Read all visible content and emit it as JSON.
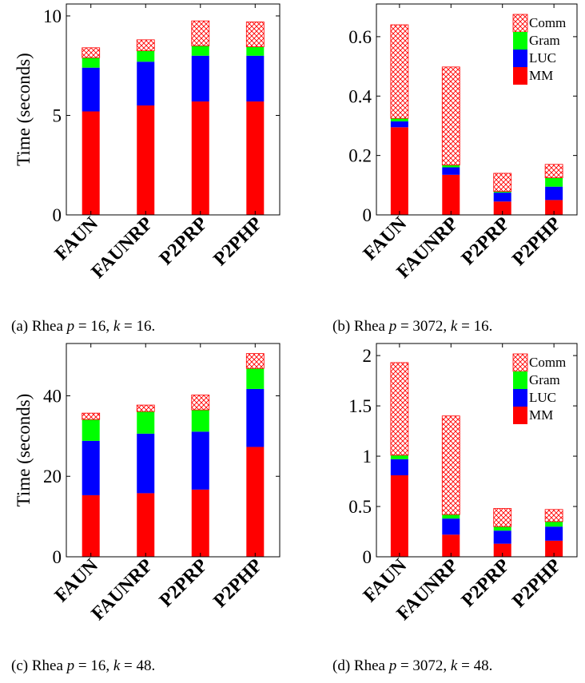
{
  "colors": {
    "MM": "#ff0000",
    "LUC": "#0000ff",
    "Gram": "#00ff00",
    "Comm": "#ff0000"
  },
  "charts": [
    {
      "caption": {
        "prefix": "(a) Rhea ",
        "p": "16",
        "k": "16"
      },
      "chart_data": {
        "type": "bar",
        "stacked": true,
        "categories": [
          "FAUN",
          "FAUNRP",
          "P2PRP",
          "P2PHP"
        ],
        "ylabel": "Time (seconds)",
        "ylim": [
          0,
          10.6
        ],
        "yticks": [
          0,
          5,
          10
        ],
        "ytick_labels": [
          "0",
          "5",
          "10"
        ],
        "legend": null,
        "series": [
          {
            "key": "MM",
            "values": [
              5.2,
              5.5,
              5.7,
              5.7
            ]
          },
          {
            "key": "LUC",
            "values": [
              2.2,
              2.2,
              2.3,
              2.3
            ]
          },
          {
            "key": "Gram",
            "values": [
              0.5,
              0.55,
              0.5,
              0.45
            ]
          },
          {
            "key": "Comm",
            "values": [
              0.5,
              0.55,
              1.25,
              1.25
            ]
          }
        ]
      }
    },
    {
      "caption": {
        "prefix": "(b) Rhea ",
        "p": "3072",
        "k": "16"
      },
      "chart_data": {
        "type": "bar",
        "stacked": true,
        "categories": [
          "FAUN",
          "FAUNRP",
          "P2PRP",
          "P2PHP"
        ],
        "ylabel": "",
        "ylim": [
          0,
          0.71
        ],
        "yticks": [
          0,
          0.2,
          0.4,
          0.6
        ],
        "ytick_labels": [
          "0",
          "0.2",
          "0.4",
          "0.6"
        ],
        "legend": {
          "position": "top-right",
          "entries": [
            "Comm",
            "Gram",
            "LUC",
            "MM"
          ]
        },
        "series": [
          {
            "key": "MM",
            "values": [
              0.295,
              0.135,
              0.045,
              0.05
            ]
          },
          {
            "key": "LUC",
            "values": [
              0.02,
              0.025,
              0.03,
              0.045
            ]
          },
          {
            "key": "Gram",
            "values": [
              0.01,
              0.008,
              0.004,
              0.03
            ]
          },
          {
            "key": "Comm",
            "values": [
              0.315,
              0.33,
              0.061,
              0.045
            ]
          }
        ]
      }
    },
    {
      "caption": {
        "prefix": "(c) Rhea ",
        "p": "16",
        "k": "48"
      },
      "chart_data": {
        "type": "bar",
        "stacked": true,
        "categories": [
          "FAUN",
          "FAUNRP",
          "P2PRP",
          "P2PHP"
        ],
        "ylabel": "Time (seconds)",
        "ylim": [
          0,
          53
        ],
        "yticks": [
          0,
          20,
          40
        ],
        "ytick_labels": [
          "0",
          "20",
          "40"
        ],
        "legend": null,
        "series": [
          {
            "key": "MM",
            "values": [
              15.3,
              15.8,
              16.7,
              27.3
            ]
          },
          {
            "key": "LUC",
            "values": [
              13.5,
              14.8,
              14.4,
              14.4
            ]
          },
          {
            "key": "Gram",
            "values": [
              5.3,
              5.5,
              5.4,
              5.1
            ]
          },
          {
            "key": "Comm",
            "values": [
              1.6,
              1.6,
              3.7,
              3.7
            ]
          }
        ]
      }
    },
    {
      "caption": {
        "prefix": "(d) Rhea ",
        "p": "3072",
        "k": "48"
      },
      "chart_data": {
        "type": "bar",
        "stacked": true,
        "categories": [
          "FAUN",
          "FAUNRP",
          "P2PRP",
          "P2PHP"
        ],
        "ylabel": "",
        "ylim": [
          0,
          2.12
        ],
        "yticks": [
          0,
          0.5,
          1,
          1.5,
          2
        ],
        "ytick_labels": [
          "0",
          "0.5",
          "1",
          "1.5",
          "2"
        ],
        "legend": {
          "position": "top-right",
          "entries": [
            "Comm",
            "Gram",
            "LUC",
            "MM"
          ]
        },
        "series": [
          {
            "key": "MM",
            "values": [
              0.81,
              0.22,
              0.13,
              0.16
            ]
          },
          {
            "key": "LUC",
            "values": [
              0.16,
              0.16,
              0.13,
              0.14
            ]
          },
          {
            "key": "Gram",
            "values": [
              0.04,
              0.04,
              0.04,
              0.05
            ]
          },
          {
            "key": "Comm",
            "values": [
              0.92,
              0.98,
              0.18,
              0.12
            ]
          }
        ]
      }
    }
  ]
}
